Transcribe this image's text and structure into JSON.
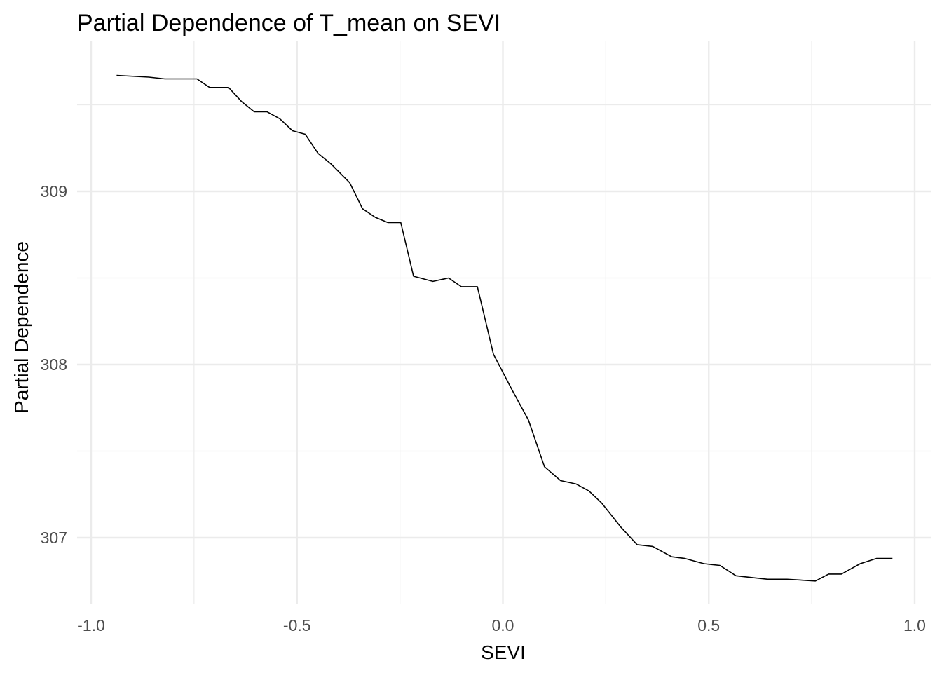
{
  "chart_data": {
    "type": "line",
    "title": "Partial Dependence of T_mean on SEVI",
    "xlabel": "SEVI",
    "ylabel": "Partial Dependence",
    "xlim": [
      -1.0,
      1.0
    ],
    "ylim": [
      306.66,
      309.74
    ],
    "x_ticks": [
      -1.0,
      -0.5,
      0.0,
      0.5,
      1.0
    ],
    "x_tick_labels": [
      "-1.0",
      "-0.5",
      "0.0",
      "0.5",
      "1.0"
    ],
    "x_minor_ticks": [
      -0.75,
      -0.25,
      0.25,
      0.75
    ],
    "y_ticks": [
      307,
      308,
      309
    ],
    "y_tick_labels": [
      "307",
      "308",
      "309"
    ],
    "y_minor_ticks": [
      307.5,
      308.5,
      309.5
    ],
    "grid": true,
    "legend": "none",
    "line_color": "#000000",
    "series": [
      {
        "x": [
          -0.938,
          -0.86,
          -0.821,
          -0.743,
          -0.712,
          -0.666,
          -0.635,
          -0.604,
          -0.573,
          -0.542,
          -0.511,
          -0.48,
          -0.449,
          -0.418,
          -0.372,
          -0.341,
          -0.31,
          -0.279,
          -0.248,
          -0.217,
          -0.17,
          -0.132,
          -0.101,
          -0.062,
          -0.023,
          0.023,
          0.062,
          0.101,
          0.14,
          0.178,
          0.209,
          0.24,
          0.287,
          0.326,
          0.364,
          0.41,
          0.442,
          0.488,
          0.527,
          0.566,
          0.604,
          0.643,
          0.69,
          0.759,
          0.791,
          0.822,
          0.868,
          0.907,
          0.946
        ],
        "y": [
          309.67,
          309.66,
          309.65,
          309.65,
          309.6,
          309.6,
          309.52,
          309.46,
          309.46,
          309.42,
          309.35,
          309.33,
          309.22,
          309.16,
          309.05,
          308.9,
          308.85,
          308.82,
          308.82,
          308.51,
          308.48,
          308.5,
          308.45,
          308.45,
          308.06,
          307.85,
          307.68,
          307.41,
          307.33,
          307.31,
          307.27,
          307.2,
          307.06,
          306.96,
          306.95,
          306.89,
          306.88,
          306.85,
          306.84,
          306.78,
          306.77,
          306.76,
          306.76,
          306.75,
          306.79,
          306.79,
          306.85,
          306.88,
          306.88
        ]
      }
    ]
  }
}
